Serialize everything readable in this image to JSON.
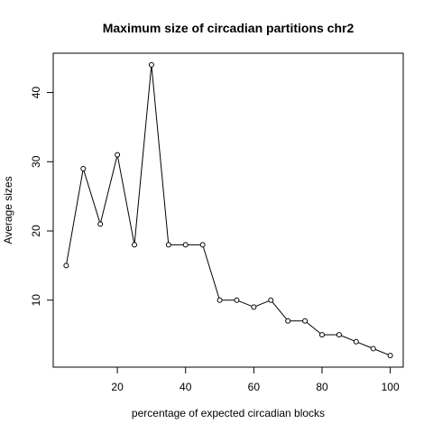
{
  "chart_data": {
    "type": "line",
    "title": "Maximum size of circadian partitions chr2",
    "xlabel": "percentage of expected circadian blocks",
    "ylabel": "Average sizes",
    "x": [
      5,
      10,
      15,
      20,
      25,
      30,
      35,
      40,
      45,
      50,
      55,
      60,
      65,
      70,
      75,
      80,
      85,
      90,
      95,
      100
    ],
    "y": [
      15,
      29,
      21,
      31,
      18,
      44,
      18,
      18,
      18,
      10,
      10,
      9,
      10,
      7,
      7,
      5,
      5,
      4,
      3,
      2
    ],
    "xlim": [
      1.2,
      103.8
    ],
    "ylim": [
      0.32,
      45.68
    ],
    "xticks": [
      20,
      40,
      60,
      80,
      100
    ],
    "yticks": [
      10,
      20,
      30,
      40
    ],
    "marker": "open-circle",
    "grid": false,
    "legend": "none",
    "colors": {
      "line": "#000000",
      "background": "#ffffff"
    }
  }
}
